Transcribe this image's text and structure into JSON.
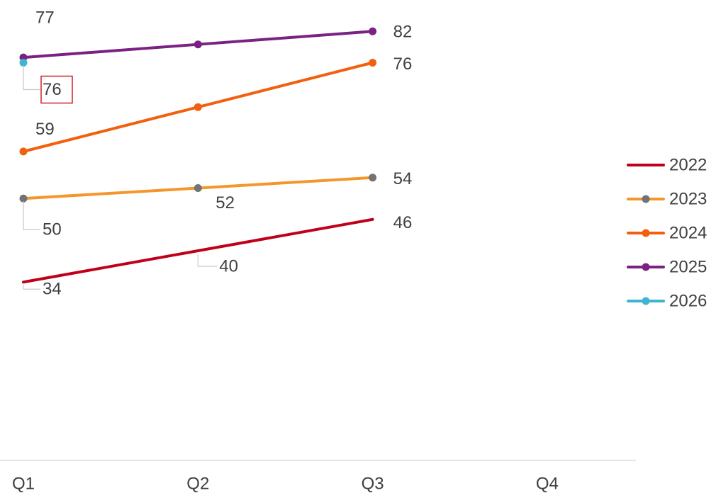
{
  "chart_data": {
    "type": "line",
    "categories": [
      "Q1",
      "Q2",
      "Q3",
      "Q4"
    ],
    "ylim": [
      0,
      88
    ],
    "series": [
      {
        "name": "2022",
        "color": "#c0001a",
        "marker_color": null,
        "values": [
          34,
          40,
          46,
          null
        ],
        "value_labels": [
          "34",
          "40",
          "46",
          null
        ]
      },
      {
        "name": "2023",
        "color": "#f5962a",
        "marker_color": "#737373",
        "values": [
          50,
          52,
          54,
          null
        ],
        "value_labels": [
          "50",
          "52",
          "54",
          null
        ]
      },
      {
        "name": "2024",
        "color": "#f2600f",
        "marker_color": "#f2600f",
        "values": [
          59,
          67.5,
          76,
          null
        ],
        "value_labels": [
          "59",
          null,
          "76",
          null
        ]
      },
      {
        "name": "2025",
        "color": "#7b2183",
        "marker_color": "#7b2183",
        "values": [
          77,
          79.5,
          82,
          null
        ],
        "value_labels": [
          "77",
          null,
          "82",
          null
        ]
      },
      {
        "name": "2026",
        "color": "#3fb4d2",
        "marker_color": "#3fb4d2",
        "values": [
          76,
          null,
          null,
          null
        ],
        "value_labels": [
          "76",
          null,
          null,
          null
        ]
      }
    ]
  }
}
